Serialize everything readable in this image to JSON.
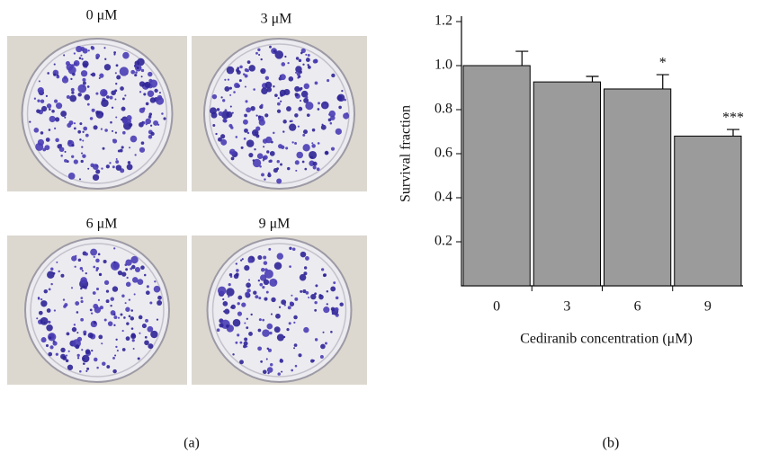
{
  "panel_a": {
    "label": "(a)",
    "images": [
      {
        "label": "0 μM"
      },
      {
        "label": "3 μM"
      },
      {
        "label": "6 μM"
      },
      {
        "label": "9 μM"
      }
    ]
  },
  "chart_data": {
    "type": "bar",
    "panel_label": "(b)",
    "x_label": "Cediranib concentration (μM)",
    "y_label": "Survival fraction",
    "categories": [
      "0",
      "3",
      "6",
      "9"
    ],
    "values": [
      1.0,
      0.926,
      0.894,
      0.68
    ],
    "errors": [
      0.065,
      0.025,
      0.065,
      0.03
    ],
    "annotations": [
      null,
      null,
      "*",
      "***"
    ],
    "color": "#9b9b9b",
    "ylim": [
      0,
      1.2
    ],
    "yticks": [
      0.2,
      0.4,
      0.6,
      0.8,
      {
        "value": 1,
        "label": "1.0"
      },
      1.2
    ]
  }
}
